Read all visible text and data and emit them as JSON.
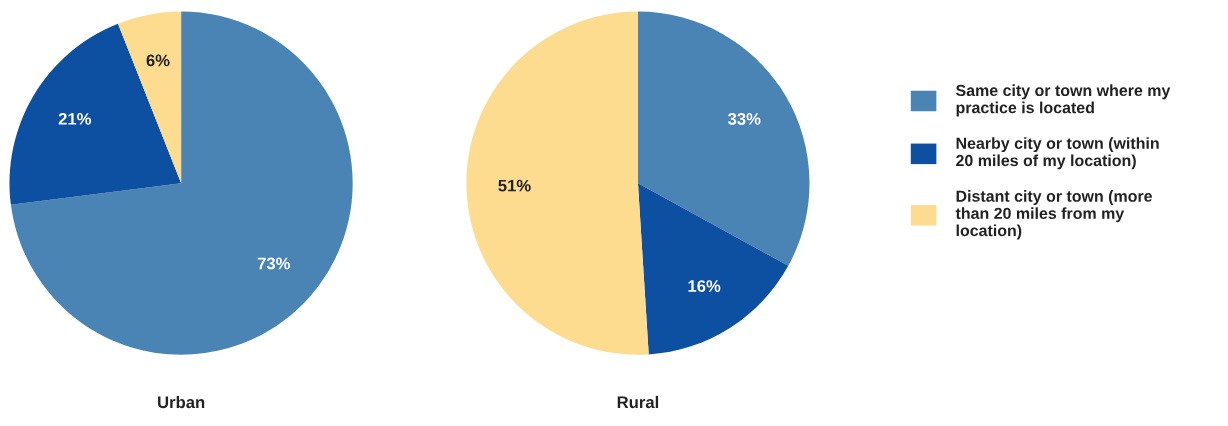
{
  "chart_data": [
    {
      "type": "pie",
      "title": "Urban",
      "categories": [
        "Same city or town where my practice is located",
        "Nearby city or town (within 20 miles of my location)",
        "Distant city or town (more than 20 miles from my location)"
      ],
      "values": [
        73,
        21,
        6
      ],
      "value_labels": [
        "73%",
        "21%",
        "6%"
      ],
      "colors": [
        "#4a84b5",
        "#0d4fa0",
        "#fddc8f"
      ],
      "legend": "right"
    },
    {
      "type": "pie",
      "title": "Rural",
      "categories": [
        null,
        null,
        null
      ],
      "values": [
        33,
        16,
        51
      ],
      "value_labels": [
        "33%",
        "16%",
        "51%"
      ],
      "colors": [
        "#4a84b5",
        "#0d4fa0",
        "#fddc8f"
      ]
    }
  ]
}
